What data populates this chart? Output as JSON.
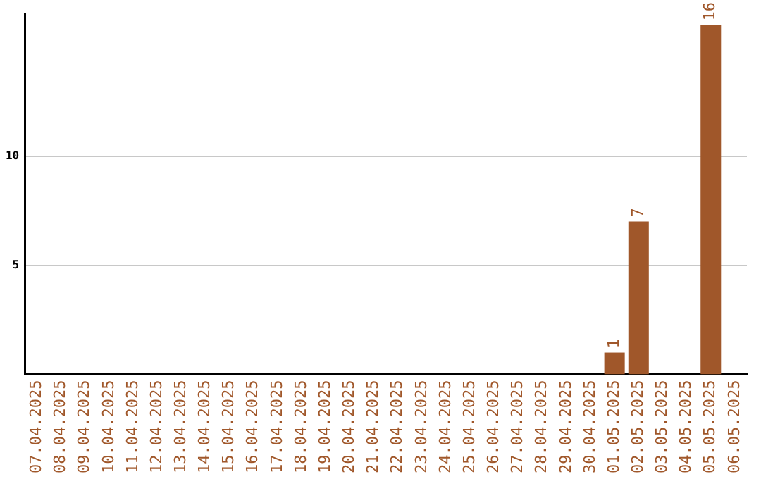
{
  "chart_data": {
    "type": "bar",
    "categories": [
      "07.04.2025",
      "08.04.2025",
      "09.04.2025",
      "10.04.2025",
      "11.04.2025",
      "12.04.2025",
      "13.04.2025",
      "14.04.2025",
      "15.04.2025",
      "16.04.2025",
      "17.04.2025",
      "18.04.2025",
      "19.04.2025",
      "20.04.2025",
      "21.04.2025",
      "22.04.2025",
      "23.04.2025",
      "24.04.2025",
      "25.04.2025",
      "26.04.2025",
      "27.04.2025",
      "28.04.2025",
      "29.04.2025",
      "30.04.2025",
      "01.05.2025",
      "02.05.2025",
      "03.05.2025",
      "04.05.2025",
      "05.05.2025",
      "06.05.2025"
    ],
    "values": [
      0,
      0,
      0,
      0,
      0,
      0,
      0,
      0,
      0,
      0,
      0,
      0,
      0,
      0,
      0,
      0,
      0,
      0,
      0,
      0,
      0,
      0,
      0,
      0,
      1,
      7,
      0,
      0,
      16,
      0
    ],
    "value_labels": [
      null,
      null,
      null,
      null,
      null,
      null,
      null,
      null,
      null,
      null,
      null,
      null,
      null,
      null,
      null,
      null,
      null,
      null,
      null,
      null,
      null,
      null,
      null,
      null,
      "1",
      "7",
      null,
      null,
      "16",
      null
    ],
    "color": "#a0572a",
    "ylim": [
      0,
      16.5
    ],
    "yticks": [
      5,
      10
    ],
    "grid": "y",
    "legend": false
  }
}
